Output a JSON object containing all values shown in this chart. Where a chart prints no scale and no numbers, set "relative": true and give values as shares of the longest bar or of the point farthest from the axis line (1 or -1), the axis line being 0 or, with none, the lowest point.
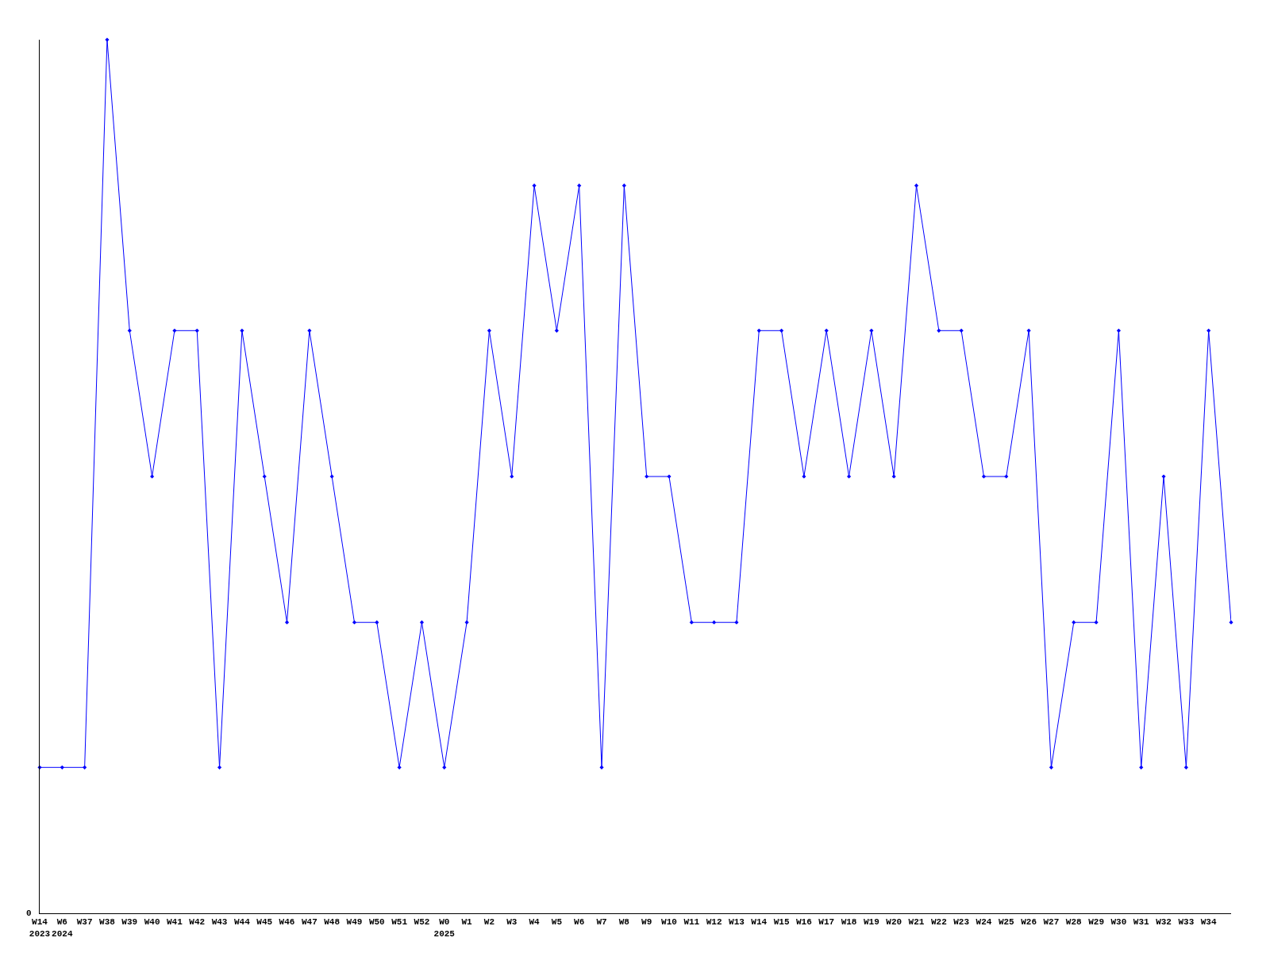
{
  "chart_data": {
    "type": "line",
    "relative": true,
    "marker": "diamond",
    "categories": [
      "W14\n2023",
      "W6\n2024",
      "W37",
      "W38",
      "W39",
      "W40",
      "W41",
      "W42",
      "W43",
      "W44",
      "W45",
      "W46",
      "W47",
      "W48",
      "W49",
      "W50",
      "W51",
      "W52",
      "W0\n2025",
      "W1",
      "W2",
      "W3",
      "W4",
      "W5",
      "W6",
      "W7",
      "W8",
      "W9",
      "W10",
      "W11",
      "W12",
      "W13",
      "W14",
      "W15",
      "W16",
      "W17",
      "W18",
      "W19",
      "W20",
      "W21",
      "W22",
      "W23",
      "W24",
      "W25",
      "W26",
      "W27",
      "W28",
      "W29",
      "W30",
      "W31",
      "W32",
      "W33",
      "W34",
      null
    ],
    "series": [
      {
        "color": "#0000ff",
        "values": [
          0.167,
          0.167,
          0.167,
          1,
          0.667,
          0.5,
          0.667,
          0.667,
          0.167,
          0.667,
          0.5,
          0.333,
          0.667,
          0.5,
          0.333,
          0.333,
          0.167,
          0.333,
          0.167,
          0.333,
          0.667,
          0.5,
          0.833,
          0.667,
          0.833,
          0.167,
          0.833,
          0.5,
          0.5,
          0.333,
          0.333,
          0.333,
          0.667,
          0.667,
          0.5,
          0.667,
          0.5,
          0.667,
          0.5,
          0.833,
          0.667,
          0.667,
          0.5,
          0.5,
          0.667,
          0.167,
          0.333,
          0.333,
          0.667,
          0.167,
          0.5,
          0.167,
          0.667,
          0.333
        ]
      }
    ],
    "annotations": [
      "0"
    ]
  }
}
